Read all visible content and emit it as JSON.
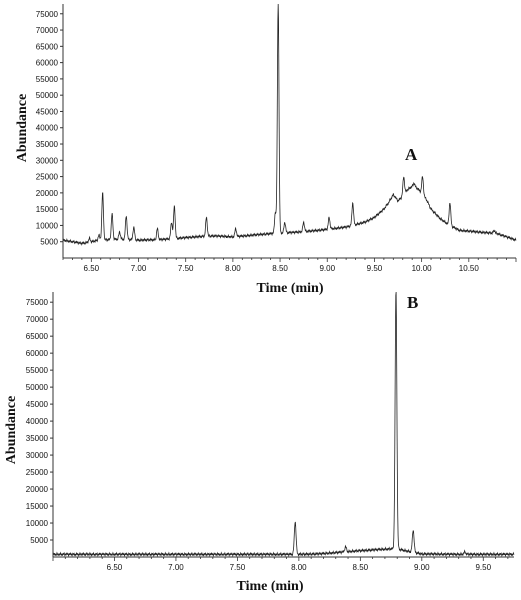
{
  "chart_data": [
    {
      "type": "line",
      "panel_label": "A",
      "xlabel": "Time (min)",
      "ylabel": "Abundance",
      "xlim": [
        6.2,
        11.0
      ],
      "ylim": [
        0,
        78000
      ],
      "x_ticks": [
        "6.50",
        "7.00",
        "7.50",
        "8.00",
        "8.50",
        "9.00",
        "9.50",
        "10.00",
        "10.50"
      ],
      "y_ticks": [
        "5000",
        "10000",
        "15000",
        "20000",
        "25000",
        "30000",
        "35000",
        "40000",
        "45000",
        "50000",
        "55000",
        "60000",
        "65000",
        "70000",
        "75000"
      ],
      "grid": false,
      "series": [
        {
          "color": "#222222",
          "baseline": [
            [
              6.2,
              5500
            ],
            [
              6.4,
              4500
            ],
            [
              6.6,
              5500
            ],
            [
              6.8,
              5800
            ],
            [
              7.0,
              5500
            ],
            [
              7.2,
              5600
            ],
            [
              7.4,
              6000
            ],
            [
              7.6,
              6500
            ],
            [
              7.8,
              6800
            ],
            [
              8.0,
              6500
            ],
            [
              8.2,
              7000
            ],
            [
              8.4,
              7500
            ],
            [
              8.6,
              7800
            ],
            [
              8.8,
              8200
            ],
            [
              9.0,
              8800
            ],
            [
              9.2,
              9500
            ],
            [
              9.4,
              11000
            ],
            [
              9.5,
              12500
            ],
            [
              9.6,
              15000
            ],
            [
              9.65,
              17000
            ],
            [
              9.7,
              19500
            ],
            [
              9.75,
              17500
            ],
            [
              9.8,
              19000
            ],
            [
              9.85,
              21000
            ],
            [
              9.9,
              22000
            ],
            [
              9.95,
              21500
            ],
            [
              10.0,
              20000
            ],
            [
              10.05,
              18000
            ],
            [
              10.1,
              15000
            ],
            [
              10.2,
              12000
            ],
            [
              10.3,
              10000
            ],
            [
              10.4,
              8500
            ],
            [
              10.6,
              8000
            ],
            [
              10.8,
              7500
            ],
            [
              11.0,
              5500
            ]
          ],
          "peaks": [
            [
              6.48,
              6000
            ],
            [
              6.58,
              7000
            ],
            [
              6.62,
              20000
            ],
            [
              6.72,
              13500
            ],
            [
              6.8,
              8000
            ],
            [
              6.87,
              13000
            ],
            [
              6.95,
              9500
            ],
            [
              7.2,
              9000
            ],
            [
              7.35,
              11000
            ],
            [
              7.38,
              16000
            ],
            [
              7.72,
              12500
            ],
            [
              8.03,
              9000
            ],
            [
              8.45,
              14000
            ],
            [
              8.48,
              79000
            ],
            [
              8.55,
              11000
            ],
            [
              8.75,
              11000
            ],
            [
              9.02,
              12500
            ],
            [
              9.27,
              17000
            ],
            [
              9.81,
              25000
            ],
            [
              9.92,
              23000
            ],
            [
              10.01,
              25000
            ],
            [
              10.3,
              17000
            ],
            [
              10.77,
              8500
            ]
          ]
        }
      ]
    },
    {
      "type": "line",
      "panel_label": "B",
      "xlabel": "Time (min)",
      "ylabel": "Abundance",
      "xlim": [
        6.0,
        9.75
      ],
      "ylim": [
        0,
        78000
      ],
      "x_ticks": [
        "6.50",
        "7.00",
        "7.50",
        "8.00",
        "8.50",
        "9.00",
        "9.50"
      ],
      "y_ticks": [
        "5000",
        "10000",
        "15000",
        "20000",
        "25000",
        "30000",
        "35000",
        "40000",
        "45000",
        "50000",
        "55000",
        "60000",
        "65000",
        "70000",
        "75000"
      ],
      "grid": false,
      "series": [
        {
          "color": "#222222",
          "baseline": [
            [
              6.0,
              800
            ],
            [
              6.5,
              800
            ],
            [
              7.0,
              800
            ],
            [
              7.5,
              800
            ],
            [
              7.9,
              800
            ],
            [
              8.05,
              800
            ],
            [
              8.2,
              1000
            ],
            [
              8.4,
              1600
            ],
            [
              8.6,
              2100
            ],
            [
              8.75,
              2400
            ],
            [
              8.8,
              2400
            ],
            [
              8.9,
              1600
            ],
            [
              9.0,
              900
            ],
            [
              9.3,
              800
            ],
            [
              9.5,
              800
            ],
            [
              9.75,
              800
            ]
          ],
          "peaks": [
            [
              7.97,
              10500
            ],
            [
              8.38,
              3000
            ],
            [
              8.79,
              79000
            ],
            [
              8.93,
              8000
            ],
            [
              9.35,
              1500
            ]
          ]
        }
      ]
    }
  ]
}
